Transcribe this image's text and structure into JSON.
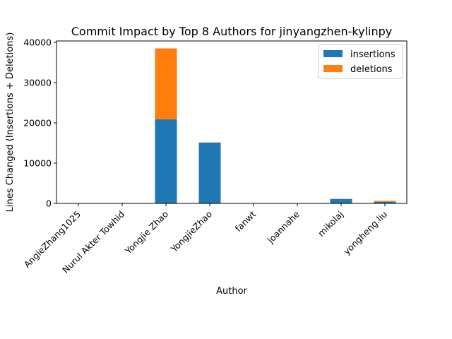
{
  "chart_data": {
    "type": "bar",
    "stacked": true,
    "title": "Commit Impact by Top 8 Authors for jinyangzhen-kylinpy",
    "xlabel": "Author",
    "ylabel": "Lines Changed (Insertions + Deletions)",
    "categories": [
      "AngieZhang1025",
      "Nurul Akter Towhid",
      "Yongjie Zhao",
      "YongjieZhao",
      "fanwt",
      "joannahe",
      "mikolaj",
      "yongheng.liu"
    ],
    "series": [
      {
        "name": "insertions",
        "color": "#1f77b4",
        "values": [
          5,
          5,
          20900,
          15100,
          5,
          5,
          1100,
          400
        ]
      },
      {
        "name": "deletions",
        "color": "#ff7f0e",
        "values": [
          2,
          2,
          17600,
          50,
          2,
          2,
          50,
          250
        ]
      }
    ],
    "yticks": [
      0,
      10000,
      20000,
      30000,
      40000
    ],
    "ylim": [
      0,
      40350
    ],
    "legend": "top-right",
    "grid": false
  }
}
